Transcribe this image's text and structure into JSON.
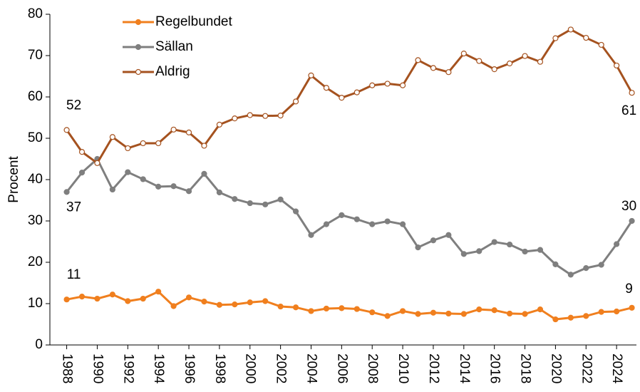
{
  "chart_data": {
    "type": "line",
    "y_label": "Procent",
    "x": [
      1988,
      1989,
      1990,
      1991,
      1992,
      1993,
      1994,
      1995,
      1996,
      1997,
      1998,
      1999,
      2000,
      2001,
      2002,
      2003,
      2004,
      2005,
      2006,
      2007,
      2008,
      2009,
      2010,
      2011,
      2012,
      2013,
      2014,
      2015,
      2016,
      2017,
      2018,
      2019,
      2020,
      2021,
      2022,
      2023,
      2024,
      2025
    ],
    "series": [
      {
        "name": "Regelbundet",
        "color": "#f07f1e",
        "marker": "filled",
        "values": [
          11,
          11.7,
          11.2,
          12.2,
          10.6,
          11.2,
          12.9,
          9.4,
          11.5,
          10.5,
          9.7,
          9.8,
          10.3,
          10.6,
          9.3,
          9.1,
          8.2,
          8.8,
          8.9,
          8.7,
          7.9,
          7,
          8.2,
          7.5,
          7.8,
          7.6,
          7.5,
          8.6,
          8.4,
          7.6,
          7.5,
          8.6,
          6.2,
          6.6,
          7,
          8,
          8.1,
          9
        ]
      },
      {
        "name": "Sällan",
        "color": "#7f7f7f",
        "marker": "filled",
        "values": [
          37,
          41.7,
          45,
          37.6,
          41.8,
          40.1,
          38.3,
          38.4,
          37.2,
          41.4,
          36.9,
          35.3,
          34.3,
          34,
          35.2,
          32.3,
          26.6,
          29.2,
          31.4,
          30.4,
          29.2,
          29.9,
          29.2,
          23.6,
          25.3,
          26.6,
          22,
          22.7,
          24.9,
          24.3,
          22.6,
          23,
          19.5,
          17,
          18.6,
          19.4,
          24.4,
          30
        ]
      },
      {
        "name": "Aldrig",
        "color": "#a5521f",
        "marker": "hollow",
        "values": [
          52,
          46.7,
          44,
          50.3,
          47.6,
          48.8,
          48.8,
          52.1,
          51.4,
          48.2,
          53.3,
          54.8,
          55.6,
          55.4,
          55.5,
          58.9,
          65.2,
          62.2,
          59.8,
          61.1,
          62.8,
          63.2,
          62.8,
          68.9,
          67,
          66,
          70.5,
          68.7,
          66.7,
          68.1,
          69.9,
          68.5,
          74.2,
          76.3,
          74.3,
          72.6,
          67.6,
          61
        ]
      }
    ],
    "data_labels": "ends",
    "xlim": [
      1986.9,
      2025.3
    ],
    "xticks": [
      1988,
      1990,
      1992,
      1994,
      1996,
      1998,
      2000,
      2002,
      2004,
      2006,
      2008,
      2010,
      2012,
      2014,
      2016,
      2018,
      2020,
      2022,
      2024
    ],
    "ylim": [
      0,
      80
    ],
    "yticks": [
      0,
      10,
      20,
      30,
      40,
      50,
      60,
      70,
      80
    ],
    "legend": "top-left"
  }
}
